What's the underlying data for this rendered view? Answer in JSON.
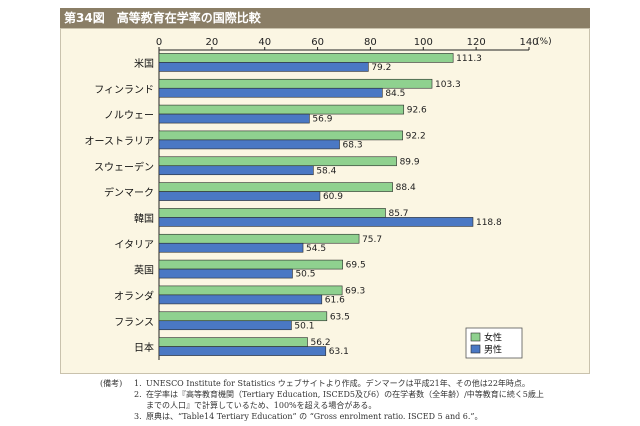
{
  "figure": {
    "number": "第34図",
    "title": "高等教育在学率の国際比較"
  },
  "chart_data": {
    "type": "bar",
    "orientation": "horizontal",
    "title": "高等教育在学率の国際比較",
    "unit": "(%)",
    "xlim": [
      0,
      140
    ],
    "ticks": [
      "0",
      "20",
      "40",
      "60",
      "80",
      "100",
      "120",
      "140"
    ],
    "categories": [
      "米国",
      "フィンランド",
      "ノルウェー",
      "オーストラリア",
      "スウェーデン",
      "デンマーク",
      "韓国",
      "イタリア",
      "英国",
      "オランダ",
      "フランス",
      "日本"
    ],
    "series": [
      {
        "name": "女性",
        "color": "#8fd18f",
        "values": [
          111.3,
          103.3,
          92.6,
          92.2,
          89.9,
          88.4,
          85.7,
          75.7,
          69.5,
          69.3,
          63.5,
          56.2
        ],
        "labels": [
          "111.3",
          "103.3",
          "92.6",
          "92.2",
          "89.9",
          "88.4",
          "85.7",
          "75.7",
          "69.5",
          "69.3",
          "63.5",
          "56.2"
        ]
      },
      {
        "name": "男性",
        "color": "#4a78c4",
        "values": [
          79.2,
          84.5,
          56.9,
          68.3,
          58.4,
          60.9,
          118.8,
          54.5,
          50.5,
          61.6,
          50.1,
          63.1
        ],
        "labels": [
          "79.2",
          "84.5",
          "56.9",
          "68.3",
          "58.4",
          "60.9",
          "118.8",
          "54.5",
          "50.5",
          "61.6",
          "50.1",
          "63.1"
        ]
      }
    ],
    "legend_position": "bottom-right",
    "grid": false
  },
  "notes": {
    "heading": "(備考)",
    "items": [
      {
        "num": "1.",
        "lines": [
          "UNESCO Institute for Statistics ウェブサイトより作成。デンマークは平成21年、その他は22年時点。"
        ]
      },
      {
        "num": "2.",
        "lines": [
          "在学率は『高等教育機関（Tertiary Education, ISCED5及び6）の在学者数（全年齢）/中等教育に続く5歳上",
          "までの人口』で計算しているため、100%を超える場合がある。"
        ]
      },
      {
        "num": "3.",
        "lines": [
          "原典は、“Table14 Tertiary Education” の “Gross enrolment ratio. ISCED 5 and 6.”。"
        ]
      }
    ]
  }
}
